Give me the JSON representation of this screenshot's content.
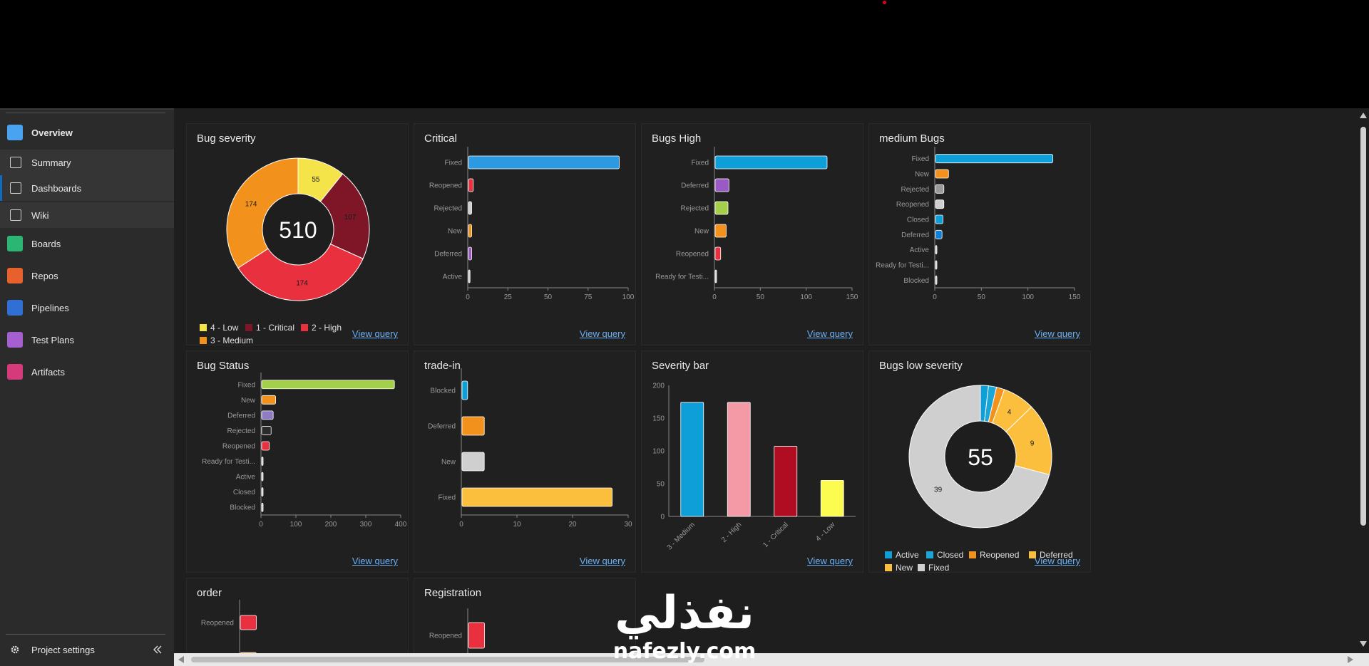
{
  "sidebar": {
    "items": [
      {
        "label": "Overview",
        "icon": "overview-icon",
        "color": "#4aa3f0",
        "kind": "main"
      },
      {
        "label": "Summary",
        "icon": "summary-icon",
        "kind": "sub"
      },
      {
        "label": "Dashboards",
        "icon": "dashboards-icon",
        "kind": "sub"
      },
      {
        "label": "Wiki",
        "icon": "wiki-icon",
        "kind": "sub"
      },
      {
        "label": "Boards",
        "icon": "boards-icon",
        "color": "#2bb673",
        "kind": "main"
      },
      {
        "label": "Repos",
        "icon": "repos-icon",
        "color": "#e8602c",
        "kind": "main"
      },
      {
        "label": "Pipelines",
        "icon": "pipelines-icon",
        "color": "#2f6fd6",
        "kind": "main"
      },
      {
        "label": "Test Plans",
        "icon": "test-plans-icon",
        "color": "#a55fd0",
        "kind": "main"
      },
      {
        "label": "Artifacts",
        "icon": "artifacts-icon",
        "color": "#d63a7a",
        "kind": "main"
      }
    ],
    "project_settings": "Project settings",
    "collapse_icon": "double-chevron-left-icon"
  },
  "view_query": "View query",
  "widgets": {
    "bug_severity": {
      "title": "Bug severity",
      "center": "510",
      "slices": [
        {
          "label": "4 - Low",
          "value": 55,
          "color": "#f5e34a"
        },
        {
          "label": "1 - Critical",
          "value": 107,
          "color": "#7e1628"
        },
        {
          "label": "2 - High",
          "value": 174,
          "color": "#e8303e"
        },
        {
          "label": "3 - Medium",
          "value": 174,
          "color": "#f2921d"
        }
      ]
    },
    "critical": {
      "title": "Critical",
      "categories": [
        "Fixed",
        "Reopened",
        "Rejected",
        "New",
        "Deferred",
        "Active"
      ],
      "values": [
        94,
        3,
        2,
        2,
        2,
        1
      ],
      "colors": [
        "#2c9ae0",
        "#e8303e",
        "#cfcfcf",
        "#f2921d",
        "#9b59c4",
        "#cfcfcf"
      ],
      "ticks": [
        "0",
        "25",
        "50",
        "75",
        "100"
      ],
      "max": 100
    },
    "bugs_high": {
      "title": "Bugs High",
      "categories": [
        "Fixed",
        "Deferred",
        "Rejected",
        "New",
        "Reopened",
        "Ready for Testi..."
      ],
      "values": [
        122,
        15,
        14,
        12,
        6,
        1
      ],
      "colors": [
        "#0f9fd8",
        "#9b59c4",
        "#a4cf4a",
        "#f2921d",
        "#e8303e",
        "#cfcfcf"
      ],
      "ticks": [
        "0",
        "50",
        "100",
        "150"
      ],
      "max": 150
    },
    "medium_bugs": {
      "title": "medium Bugs",
      "categories": [
        "Fixed",
        "New",
        "Rejected",
        "Reopened",
        "Closed",
        "Deferred",
        "Active",
        "Ready for Testi...",
        "Blocked"
      ],
      "values": [
        126,
        14,
        9,
        9,
        8,
        7,
        1,
        1,
        1
      ],
      "colors": [
        "#0f9fd8",
        "#f2921d",
        "#9a9a9a",
        "#cfcfcf",
        "#0f9fd8",
        "#0f7fd8",
        "#cfcfcf",
        "#cfcfcf",
        "#cfcfcf"
      ],
      "ticks": [
        "0",
        "50",
        "100",
        "150"
      ],
      "max": 150
    },
    "bug_status": {
      "title": "Bug Status",
      "categories": [
        "Fixed",
        "New",
        "Deferred",
        "Rejected",
        "Reopened",
        "Ready for Testi...",
        "Active",
        "Closed",
        "Blocked"
      ],
      "values": [
        380,
        40,
        33,
        27,
        22,
        3,
        2,
        2,
        2
      ],
      "colors": [
        "#a4cf4a",
        "#f2921d",
        "#8e7cc3",
        "#2b2b2b",
        "#e8303e",
        "#cfcfcf",
        "#cfcfcf",
        "#cfcfcf",
        "#cfcfcf"
      ],
      "ticks": [
        "0",
        "100",
        "200",
        "300",
        "400"
      ],
      "max": 400
    },
    "trade_in": {
      "title": "trade-in",
      "categories": [
        "Blocked",
        "Deferred",
        "New",
        "Fixed"
      ],
      "values": [
        1,
        4,
        4,
        27
      ],
      "colors": [
        "#0f9fd8",
        "#f2921d",
        "#cfcfcf",
        "#fbbf3d"
      ],
      "ticks": [
        "0",
        "10",
        "20",
        "30"
      ],
      "max": 30
    },
    "severity_bar": {
      "title": "Severity bar",
      "categories": [
        "3 - Medium",
        "2 - High",
        "1 - Critical",
        "4 - Low"
      ],
      "values": [
        174,
        174,
        107,
        55
      ],
      "colors": [
        "#0f9fd8",
        "#f49aa6",
        "#b00d22",
        "#fbfb50"
      ],
      "ticks": [
        "0",
        "50",
        "100",
        "150",
        "200"
      ],
      "max": 200
    },
    "bugs_low": {
      "title": "Bugs low severity",
      "center": "55",
      "slices": [
        {
          "label": "Active",
          "value": 1,
          "color": "#0f9fd8"
        },
        {
          "label": "Closed",
          "value": 1,
          "color": "#1aa6d6"
        },
        {
          "label": "Reopened",
          "value": 1,
          "color": "#f2921d"
        },
        {
          "label": "Deferred",
          "value": 4,
          "color": "#fbbf3d"
        },
        {
          "label": "New",
          "value": 9,
          "color": "#fbbf3d"
        },
        {
          "label": "Fixed",
          "value": 39,
          "color": "#cfcfcf"
        }
      ],
      "slice_labels": [
        "",
        "",
        "",
        "4",
        "9",
        "39"
      ]
    },
    "order": {
      "title": "order",
      "categories": [
        "Reopened",
        ""
      ],
      "values": [
        1,
        1
      ],
      "colors": [
        "#e8303e",
        "#f2921d"
      ],
      "max": 10
    },
    "registration": {
      "title": "Registration",
      "categories": [
        "Reopened"
      ],
      "values": [
        1
      ],
      "colors": [
        "#e8303e"
      ],
      "max": 10
    }
  },
  "watermark": {
    "arabic": "نفذلي",
    "latin": "nafezly.com"
  }
}
